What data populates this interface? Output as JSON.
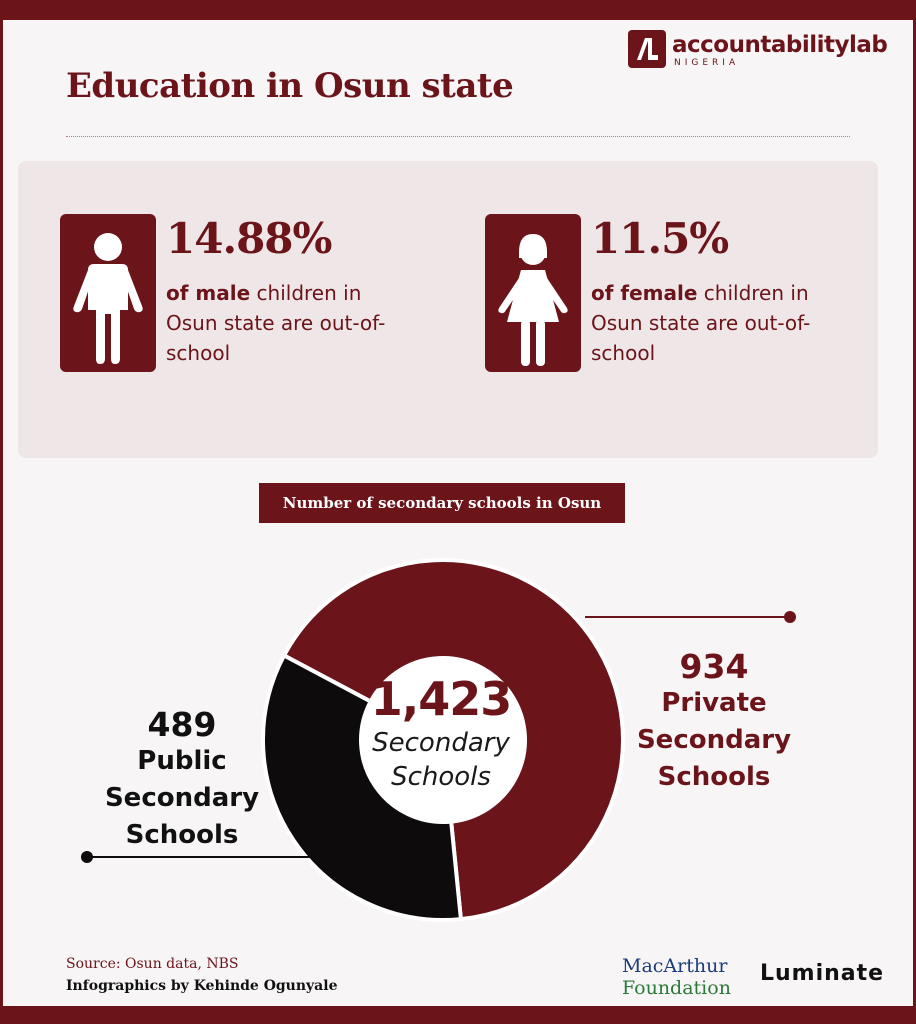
{
  "header": {
    "logo_text": "accountabilitylab",
    "logo_sub": "NIGERIA",
    "title": "Education in Osun state"
  },
  "stats": {
    "male": {
      "value": "14.88%",
      "desc_bold": "of male",
      "desc_rest": " children in Osun state are out-of-school",
      "icon": "male-child-icon"
    },
    "female": {
      "value": "11.5%",
      "desc_bold": "of female",
      "desc_rest": " children in Osun state are out-of-school",
      "icon": "female-child-icon"
    }
  },
  "chart_data": {
    "type": "pie",
    "style": "donut",
    "title": "Number of secondary schools in Osun",
    "total": 1423,
    "total_text": "1,423",
    "total_label": "Secondary Schools",
    "slices": [
      {
        "label": "Public Secondary Schools",
        "value": 489,
        "color": "#0d0b0b"
      },
      {
        "label": "Private Secondary Schools",
        "value": 934,
        "color": "#6b141a"
      }
    ]
  },
  "footer": {
    "source": "Source: Osun data, NBS",
    "credit": "Infographics by Kehinde Ogunyale",
    "partner1_line1": "MacArthur",
    "partner1_line2": "Foundation",
    "partner2": "Luminate"
  },
  "colors": {
    "brand": "#6b141a",
    "panel": "#efe6e7",
    "public": "#0d0b0b"
  }
}
